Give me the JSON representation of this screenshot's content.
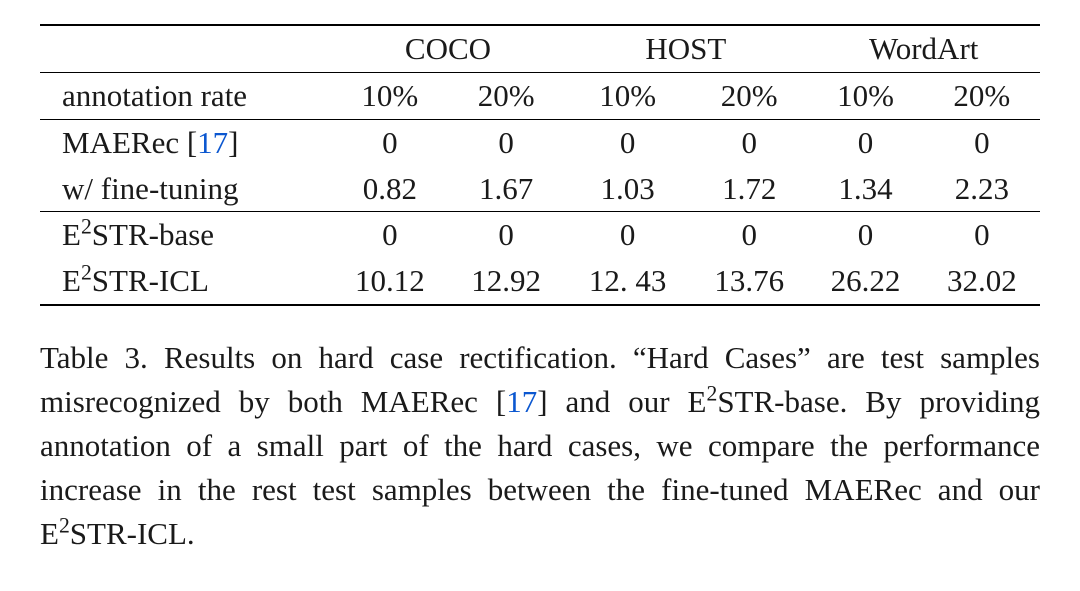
{
  "table": {
    "datasets": [
      "COCO",
      "HOST",
      "WordArt"
    ],
    "annotation_label": "annotation rate",
    "rates": [
      "10%",
      "20%",
      "10%",
      "20%",
      "10%",
      "20%"
    ],
    "rows": [
      {
        "label_html": "MAERec [<span class=\"cite\">17</span>]",
        "values": [
          "0",
          "0",
          "0",
          "0",
          "0",
          "0"
        ]
      },
      {
        "label_html": "w/ fine-tuning",
        "values": [
          "0.82",
          "1.67",
          "1.03",
          "1.72",
          "1.34",
          "2.23"
        ]
      },
      {
        "label_html": "E<span class=\"sup\">2</span>STR-base",
        "values": [
          "0",
          "0",
          "0",
          "0",
          "0",
          "0"
        ]
      },
      {
        "label_html": "E<span class=\"sup\">2</span>STR-ICL",
        "values": [
          "10.12",
          "12.92",
          "12. 43",
          "13.76",
          "26.22",
          "32.02"
        ]
      }
    ],
    "colors": {
      "text": "#1a1a1a",
      "cite_link": "#0b57d0",
      "rule": "#000000",
      "background": "#ffffff"
    },
    "font": {
      "family": "Times New Roman",
      "size_pt": 23
    }
  },
  "caption": {
    "label": "Table 3.",
    "body_html": "Results on hard case rectification. “Hard Cases” are test samples misrecognized by both MAERec [<span class=\"cite\">17</span>] and our E<span class=\"sup\">2</span>STR-base. By providing annotation of a small part of the hard cases, we compare the performance increase in the rest test samples between the fine-tuned MAERec and our E<span class=\"sup\">2</span>STR-ICL."
  }
}
